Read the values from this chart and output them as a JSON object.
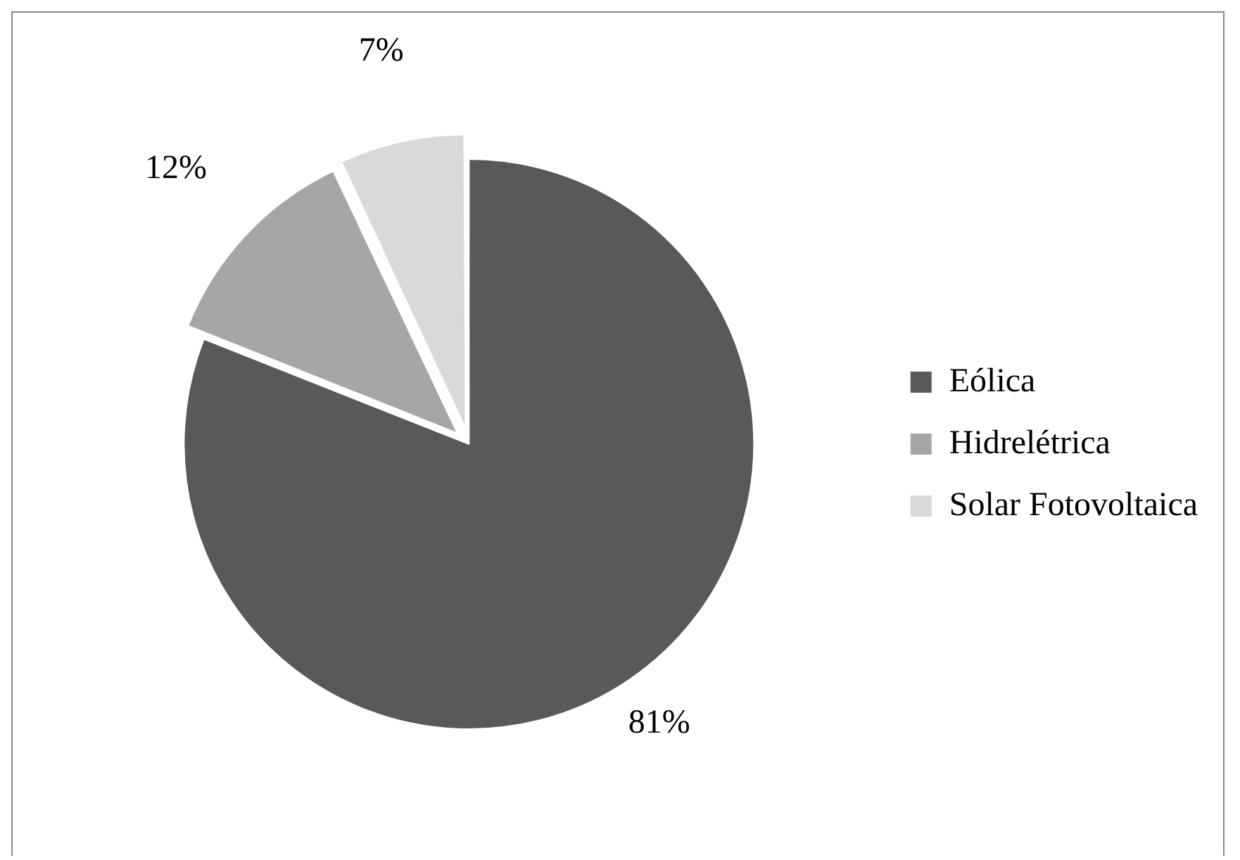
{
  "chart_data": {
    "type": "pie",
    "categories": [
      "Eólica",
      "Hidrelétrica",
      "Solar Fotovoltaica"
    ],
    "values": [
      81,
      12,
      7
    ],
    "colors": [
      "#595959",
      "#a6a6a6",
      "#d9d9d9"
    ],
    "value_labels": [
      "81%",
      "12%",
      "7%"
    ],
    "legend": "right"
  }
}
